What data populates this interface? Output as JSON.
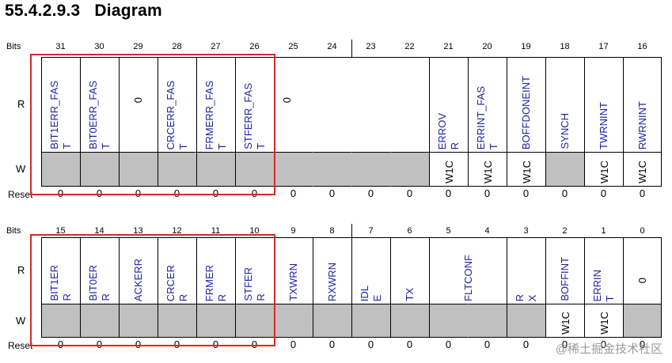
{
  "title": {
    "number": "55.4.2.9.3",
    "text": "Diagram"
  },
  "labels": {
    "bits": "Bits",
    "r": "R",
    "w": "W",
    "reset": "Reset"
  },
  "upper": {
    "bits": [
      "31",
      "30",
      "29",
      "28",
      "27",
      "26",
      "25",
      "24",
      "23",
      "22",
      "21",
      "20",
      "19",
      "18",
      "17",
      "16"
    ],
    "fields": [
      {
        "text": "BIT1ERR_FAS\nT",
        "span": 1,
        "color": "blue",
        "w": "gray"
      },
      {
        "text": "BIT0ERR_FAS\nT",
        "span": 1,
        "color": "blue",
        "w": "gray"
      },
      {
        "text": "0",
        "span": 1,
        "color": "black",
        "w": "gray"
      },
      {
        "text": "CRCERR_FAS\nT",
        "span": 1,
        "color": "blue",
        "w": "gray"
      },
      {
        "text": "FRMERR_FAS\nT",
        "span": 1,
        "color": "blue",
        "w": "gray"
      },
      {
        "text": "STFERR_FAS\nT",
        "span": 1,
        "color": "blue",
        "w": "gray"
      },
      {
        "text": "0",
        "span": 4,
        "color": "black",
        "w": "gray"
      },
      {
        "text": "ERROV\nR",
        "span": 1,
        "color": "blue",
        "w": "W1C"
      },
      {
        "text": "ERRINT_FAS\nT",
        "span": 1,
        "color": "blue",
        "w": "W1C"
      },
      {
        "text": "BOFFDONEINT",
        "span": 1,
        "color": "blue",
        "w": "W1C"
      },
      {
        "text": "SYNCH",
        "span": 1,
        "color": "blue",
        "w": "gray"
      },
      {
        "text": "TWRNINT",
        "span": 1,
        "color": "blue",
        "w": "W1C"
      },
      {
        "text": "RWRNINT",
        "span": 1,
        "color": "blue",
        "w": "W1C"
      }
    ],
    "reset": [
      "0",
      "0",
      "0",
      "0",
      "0",
      "0",
      "0",
      "0",
      "0",
      "0",
      "0",
      "0",
      "0",
      "0",
      "0",
      "0"
    ]
  },
  "lower": {
    "bits": [
      "15",
      "14",
      "13",
      "12",
      "11",
      "10",
      "9",
      "8",
      "7",
      "6",
      "5",
      "4",
      "3",
      "2",
      "1",
      "0"
    ],
    "fields": [
      {
        "text": "BIT1ER\nR",
        "span": 1,
        "color": "blue",
        "w": "gray"
      },
      {
        "text": "BIT0ER\nR",
        "span": 1,
        "color": "blue",
        "w": "gray"
      },
      {
        "text": "ACKERR",
        "span": 1,
        "color": "blue",
        "w": "gray"
      },
      {
        "text": "CRCER\nR",
        "span": 1,
        "color": "blue",
        "w": "gray"
      },
      {
        "text": "FRMER\nR",
        "span": 1,
        "color": "blue",
        "w": "gray"
      },
      {
        "text": "STFER\nR",
        "span": 1,
        "color": "blue",
        "w": "gray"
      },
      {
        "text": "TXWRN",
        "span": 1,
        "color": "blue",
        "w": "gray"
      },
      {
        "text": "RXWRN",
        "span": 1,
        "color": "blue",
        "w": "gray"
      },
      {
        "text": "IDL\nE",
        "span": 1,
        "color": "blue",
        "w": "gray"
      },
      {
        "text": "TX",
        "span": 1,
        "color": "blue",
        "w": "gray"
      },
      {
        "text": "FLTCONF",
        "span": 2,
        "color": "blue",
        "w": "gray"
      },
      {
        "text": "R\nX",
        "span": 1,
        "color": "blue",
        "w": "gray"
      },
      {
        "text": "BOFFINT",
        "span": 1,
        "color": "blue",
        "w": "W1C"
      },
      {
        "text": "ERRIN\nT",
        "span": 1,
        "color": "blue",
        "w": "W1C"
      },
      {
        "text": "0",
        "span": 1,
        "color": "black",
        "w": "gray"
      }
    ],
    "reset": [
      "0",
      "0",
      "0",
      "0",
      "0",
      "0",
      "0",
      "0",
      "0",
      "0",
      "0",
      "0",
      "0",
      "0",
      "0",
      "0"
    ]
  },
  "watermark": "@稀土掘金技术社区"
}
